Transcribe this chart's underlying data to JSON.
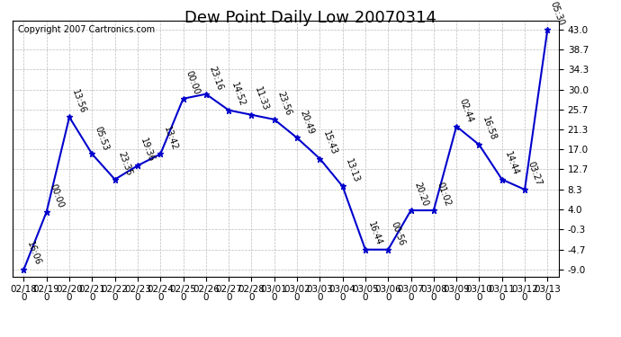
{
  "title": "Dew Point Daily Low 20070314",
  "copyright": "Copyright 2007 Cartronics.com",
  "dates": [
    "02/18\n0",
    "02/19\n0",
    "02/20\n0",
    "02/21\n0",
    "02/22\n0",
    "02/23\n0",
    "02/24\n0",
    "02/25\n0",
    "02/26\n0",
    "02/27\n0",
    "02/28\n0",
    "03/01\n0",
    "03/02\n0",
    "03/03\n0",
    "03/04\n0",
    "03/05\n0",
    "03/06\n0",
    "03/07\n0",
    "03/08\n0",
    "03/09\n0",
    "03/10\n0",
    "03/11\n0",
    "03/12\n0",
    "03/13\n0"
  ],
  "values": [
    -9.0,
    3.5,
    24.0,
    16.0,
    10.5,
    13.5,
    16.0,
    28.0,
    29.0,
    25.5,
    24.5,
    23.5,
    19.5,
    15.0,
    9.0,
    -4.7,
    -4.7,
    3.8,
    3.8,
    22.0,
    18.0,
    10.5,
    8.3,
    43.0
  ],
  "labels": [
    "16:06",
    "00:00",
    "13:56",
    "05:53",
    "23:35",
    "19:36",
    "13:42",
    "00:00",
    "23:16",
    "14:52",
    "11:33",
    "23:56",
    "20:49",
    "15:43",
    "13:13",
    "16:44",
    "00:56",
    "20:20",
    "01:02",
    "02:44",
    "16:58",
    "14:44",
    "03:27",
    "05:30"
  ],
  "line_color": "#0000cc",
  "marker_color": "#0000cc",
  "background_color": "#ffffff",
  "plot_background": "#ffffff",
  "grid_color": "#bbbbbb",
  "yticks": [
    43.0,
    38.7,
    34.3,
    30.0,
    25.7,
    21.3,
    17.0,
    12.7,
    8.3,
    4.0,
    -0.3,
    -4.7,
    -9.0
  ],
  "ylim": [
    -10.5,
    45.0
  ],
  "title_fontsize": 13,
  "label_fontsize": 7,
  "tick_fontsize": 7.5,
  "copyright_fontsize": 7
}
